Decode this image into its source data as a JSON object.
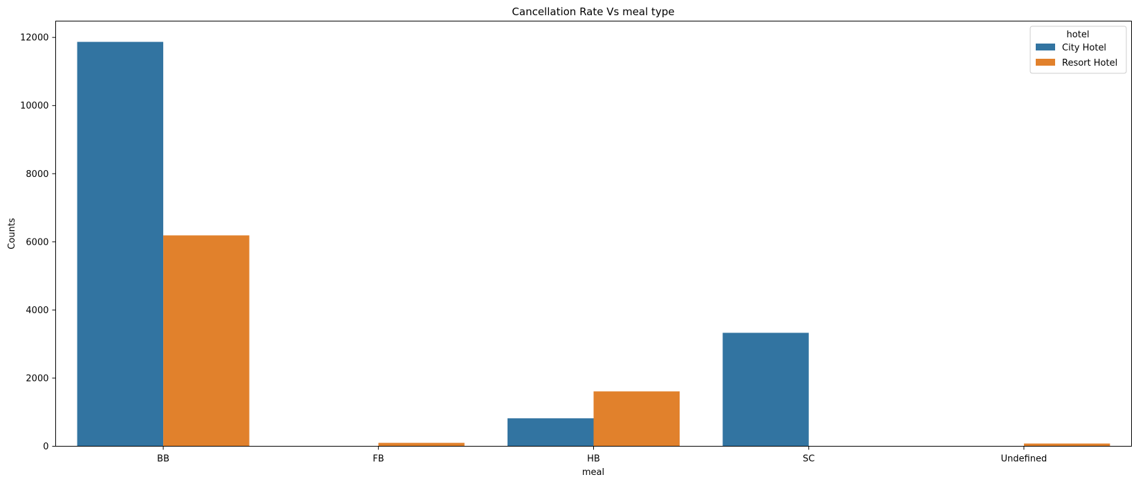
{
  "chart_data": {
    "type": "bar",
    "title": "Cancellation Rate Vs meal type",
    "xlabel": "meal",
    "ylabel": "Counts",
    "categories": [
      "BB",
      "FB",
      "HB",
      "SC",
      "Undefined"
    ],
    "series": [
      {
        "name": "City Hotel",
        "color": "#3274a1",
        "values": [
          11870,
          0,
          820,
          3330,
          0
        ]
      },
      {
        "name": "Resort Hotel",
        "color": "#e1812c",
        "values": [
          6190,
          100,
          1610,
          0,
          80
        ]
      }
    ],
    "ylim": [
      0,
      12480
    ],
    "yticks": [
      0,
      2000,
      4000,
      6000,
      8000,
      10000,
      12000
    ],
    "grid": false,
    "legend": {
      "title": "hotel",
      "placement": "upper-right"
    }
  }
}
